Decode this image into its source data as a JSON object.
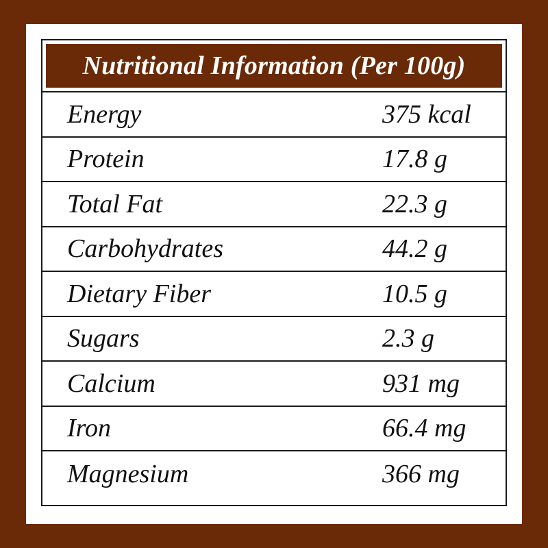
{
  "title": "Nutritional Information (Per 100g)",
  "colors": {
    "background": "#6b2a07",
    "header": "#6b2a07",
    "card": "#ffffff",
    "rule": "#1a1a1a"
  },
  "rows": [
    {
      "label": "Energy",
      "value": "375 kcal"
    },
    {
      "label": "Protein",
      "value": "17.8 g"
    },
    {
      "label": "Total Fat",
      "value": "22.3 g"
    },
    {
      "label": "Carbohydrates",
      "value": "44.2 g"
    },
    {
      "label": "Dietary Fiber",
      "value": "10.5 g"
    },
    {
      "label": "Sugars",
      "value": "2.3 g"
    },
    {
      "label": "Calcium",
      "value": "931 mg"
    },
    {
      "label": "Iron",
      "value": "66.4 mg"
    },
    {
      "label": "Magnesium",
      "value": "366 mg"
    }
  ]
}
